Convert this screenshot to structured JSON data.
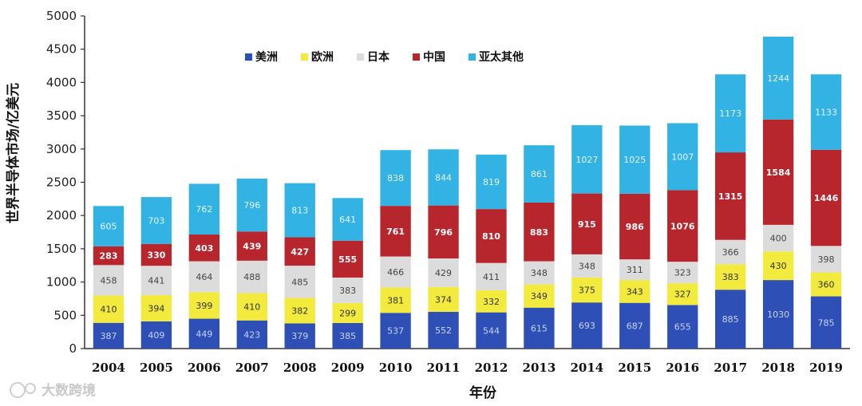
{
  "chart_data": {
    "type": "bar",
    "stacked": true,
    "title": "",
    "xlabel": "年份",
    "ylabel": "世界半导体市场/亿美元",
    "ylim": [
      0,
      5000
    ],
    "yticks": [
      0,
      500,
      1000,
      1500,
      2000,
      2500,
      3000,
      3500,
      4000,
      4500,
      5000
    ],
    "grid": false,
    "legend_position": "top-left",
    "categories": [
      "2004",
      "2005",
      "2006",
      "2007",
      "2008",
      "2009",
      "2010",
      "2011",
      "2012",
      "2013",
      "2014",
      "2015",
      "2016",
      "2017",
      "2018",
      "2019"
    ],
    "series": [
      {
        "name": "美洲",
        "color": "#2e4fb5",
        "label_color": "#c9d3ff",
        "values": [
          387,
          409,
          449,
          423,
          379,
          385,
          537,
          552,
          544,
          615,
          693,
          687,
          655,
          885,
          1030,
          785
        ]
      },
      {
        "name": "欧洲",
        "color": "#f2ea3c",
        "label_color": "#333333",
        "values": [
          410,
          394,
          399,
          410,
          382,
          299,
          381,
          374,
          332,
          349,
          375,
          343,
          327,
          383,
          430,
          360
        ]
      },
      {
        "name": "日本",
        "color": "#dcdcdc",
        "label_color": "#444444",
        "values": [
          458,
          441,
          464,
          488,
          485,
          383,
          466,
          429,
          411,
          348,
          348,
          311,
          323,
          366,
          400,
          398
        ]
      },
      {
        "name": "中国",
        "color": "#b8262d",
        "label_color": "#ffffff",
        "values": [
          283,
          330,
          403,
          439,
          427,
          555,
          761,
          796,
          810,
          883,
          915,
          986,
          1076,
          1315,
          1584,
          1446
        ]
      },
      {
        "name": "亚太其他",
        "color": "#33b3e3",
        "label_color": "#e6f7ff",
        "values": [
          605,
          703,
          762,
          796,
          813,
          641,
          838,
          844,
          819,
          861,
          1027,
          1025,
          1007,
          1173,
          1244,
          1133
        ]
      }
    ]
  },
  "watermark": "大数跨境"
}
